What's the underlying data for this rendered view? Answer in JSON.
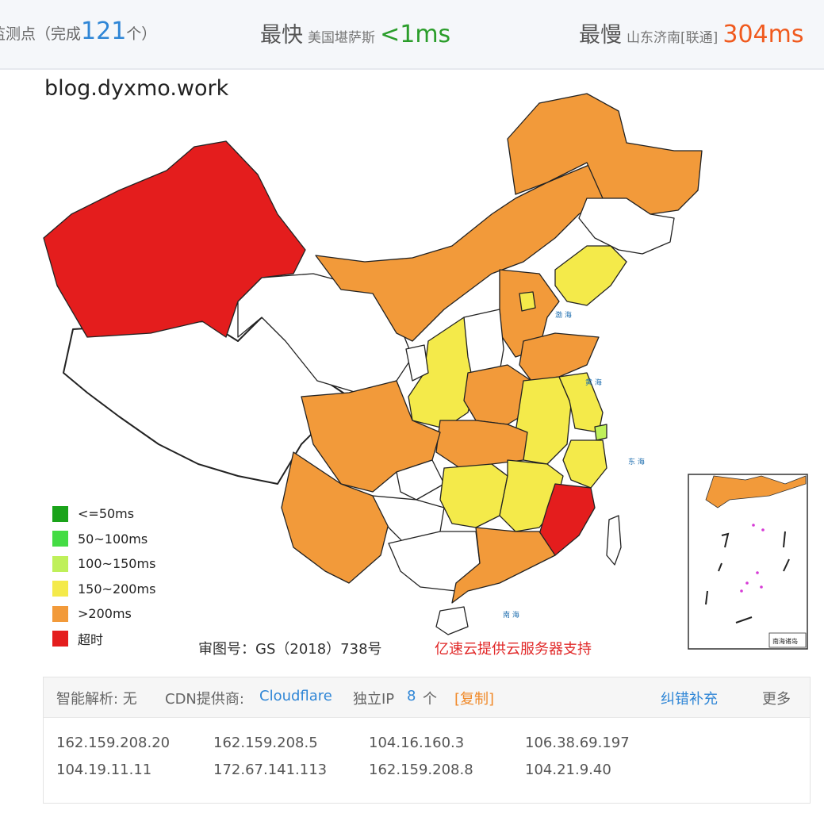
{
  "stats": {
    "count_prefix": "监测点（完成",
    "count_value": "121",
    "count_suffix": "个）",
    "fastest_label": "最快",
    "fastest_place": "美国堪萨斯",
    "fastest_value": "<1ms",
    "slowest_label": "最慢",
    "slowest_place": "山东济南[联通]",
    "slowest_value": "304ms"
  },
  "map": {
    "domain": "blog.dyxmo.work",
    "approval_number": "审图号：GS（2018）738号",
    "sponsor": "亿速云提供云服务器支持",
    "inset_title": "南海诸岛",
    "legend": [
      {
        "label": "<=50ms",
        "color": "#1aa31a"
      },
      {
        "label": "50~100ms",
        "color": "#44dc44"
      },
      {
        "label": "100~150ms",
        "color": "#bff05a"
      },
      {
        "label": "150~200ms",
        "color": "#f4ea4a"
      },
      {
        "label": ">200ms",
        "color": "#f29a3a"
      },
      {
        "label": "超时",
        "color": "#e41d1d"
      }
    ]
  },
  "dns": {
    "smart_label": "智能解析: 无",
    "cdn_label": "CDN提供商:",
    "cdn_value": "Cloudflare",
    "ip_label": "独立IP",
    "ip_count": "8",
    "ip_unit": "个",
    "copy": "[复制]",
    "report": "纠错补充",
    "more": "更多",
    "ips": [
      [
        "162.159.208.20",
        "162.159.208.5",
        "104.16.160.3",
        "106.38.69.197"
      ],
      [
        "104.19.11.11",
        "172.67.141.113",
        "162.159.208.8",
        "104.21.9.40"
      ]
    ]
  }
}
